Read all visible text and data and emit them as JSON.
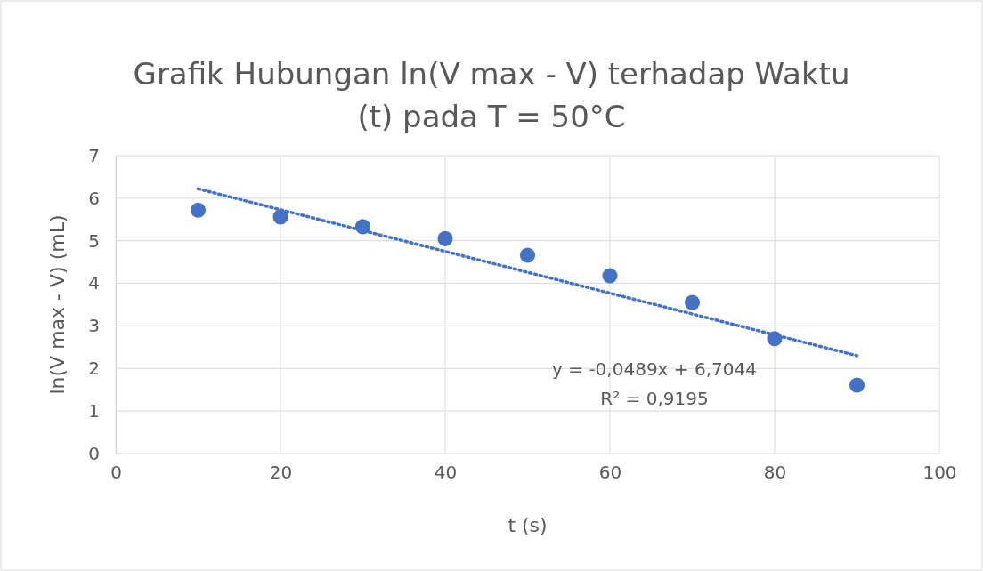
{
  "chart_data": {
    "type": "scatter",
    "title": "Grafik Hubungan ln(V max - V) terhadap Waktu (t) pada T = 50°C",
    "xlabel": "t (s)",
    "ylabel": "ln(V max - V) (mL)",
    "x": [
      10,
      20,
      30,
      40,
      50,
      60,
      70,
      80,
      90
    ],
    "series": [
      {
        "color": "#4472c4",
        "marker": "circle",
        "values": [
          5.72,
          5.56,
          5.33,
          5.05,
          4.66,
          4.18,
          3.55,
          2.7,
          1.61
        ]
      },
      {
        "type": "line",
        "color": "#4472c4",
        "line_style": "dotted",
        "marker": "none",
        "x": [
          10,
          90
        ],
        "values": [
          6.22,
          2.3
        ]
      }
    ],
    "xlim": [
      0,
      100
    ],
    "xticks": [
      0,
      20,
      40,
      60,
      80,
      100
    ],
    "ylim": [
      0,
      7
    ],
    "yticks": [
      0,
      1,
      2,
      3,
      4,
      5,
      6,
      7
    ],
    "grid": true,
    "annotations": [
      "y = -0,0489x + 6,7044",
      "R² = 0,9195"
    ]
  }
}
